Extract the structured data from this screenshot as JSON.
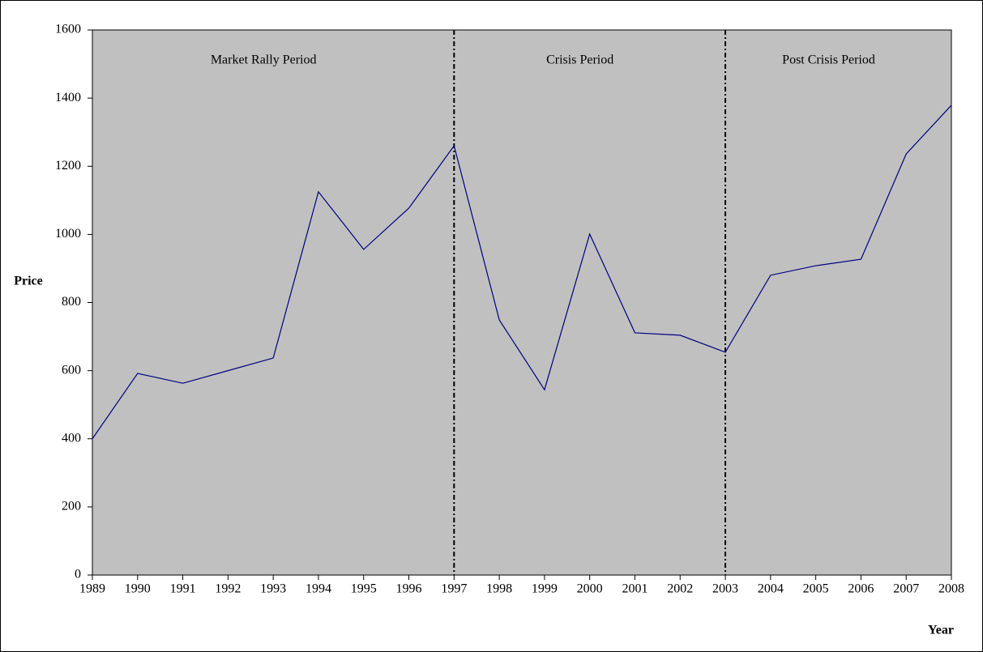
{
  "chart_data": {
    "type": "line",
    "y_axis_label": "Price",
    "x_axis_label": "Year",
    "x": [
      1989,
      1990,
      1991,
      1992,
      1993,
      1994,
      1995,
      1996,
      1997,
      1998,
      1999,
      2000,
      2001,
      2002,
      2003,
      2004,
      2005,
      2006,
      2007,
      2008
    ],
    "series": [
      {
        "color": "#000080",
        "values": [
          400,
          592,
          563,
          600,
          637,
          1125,
          956,
          1077,
          1260,
          749,
          544,
          1001,
          711,
          704,
          654,
          880,
          908,
          927,
          1236,
          1379
        ]
      }
    ],
    "xlim": [
      1989,
      2008
    ],
    "xticks": [
      1989,
      1990,
      1991,
      1992,
      1993,
      1994,
      1995,
      1996,
      1997,
      1998,
      1999,
      2000,
      2001,
      2002,
      2003,
      2004,
      2005,
      2006,
      2007,
      2008
    ],
    "ylim": [
      0,
      1600
    ],
    "yticks": [
      0,
      200,
      400,
      600,
      800,
      1000,
      1200,
      1400,
      1600
    ],
    "vlines": [
      1997,
      2003
    ],
    "period_labels": [
      "Market Rally Period",
      "Crisis Period",
      "Post Crisis Period"
    ],
    "plot_background": "#c0c0c0"
  }
}
